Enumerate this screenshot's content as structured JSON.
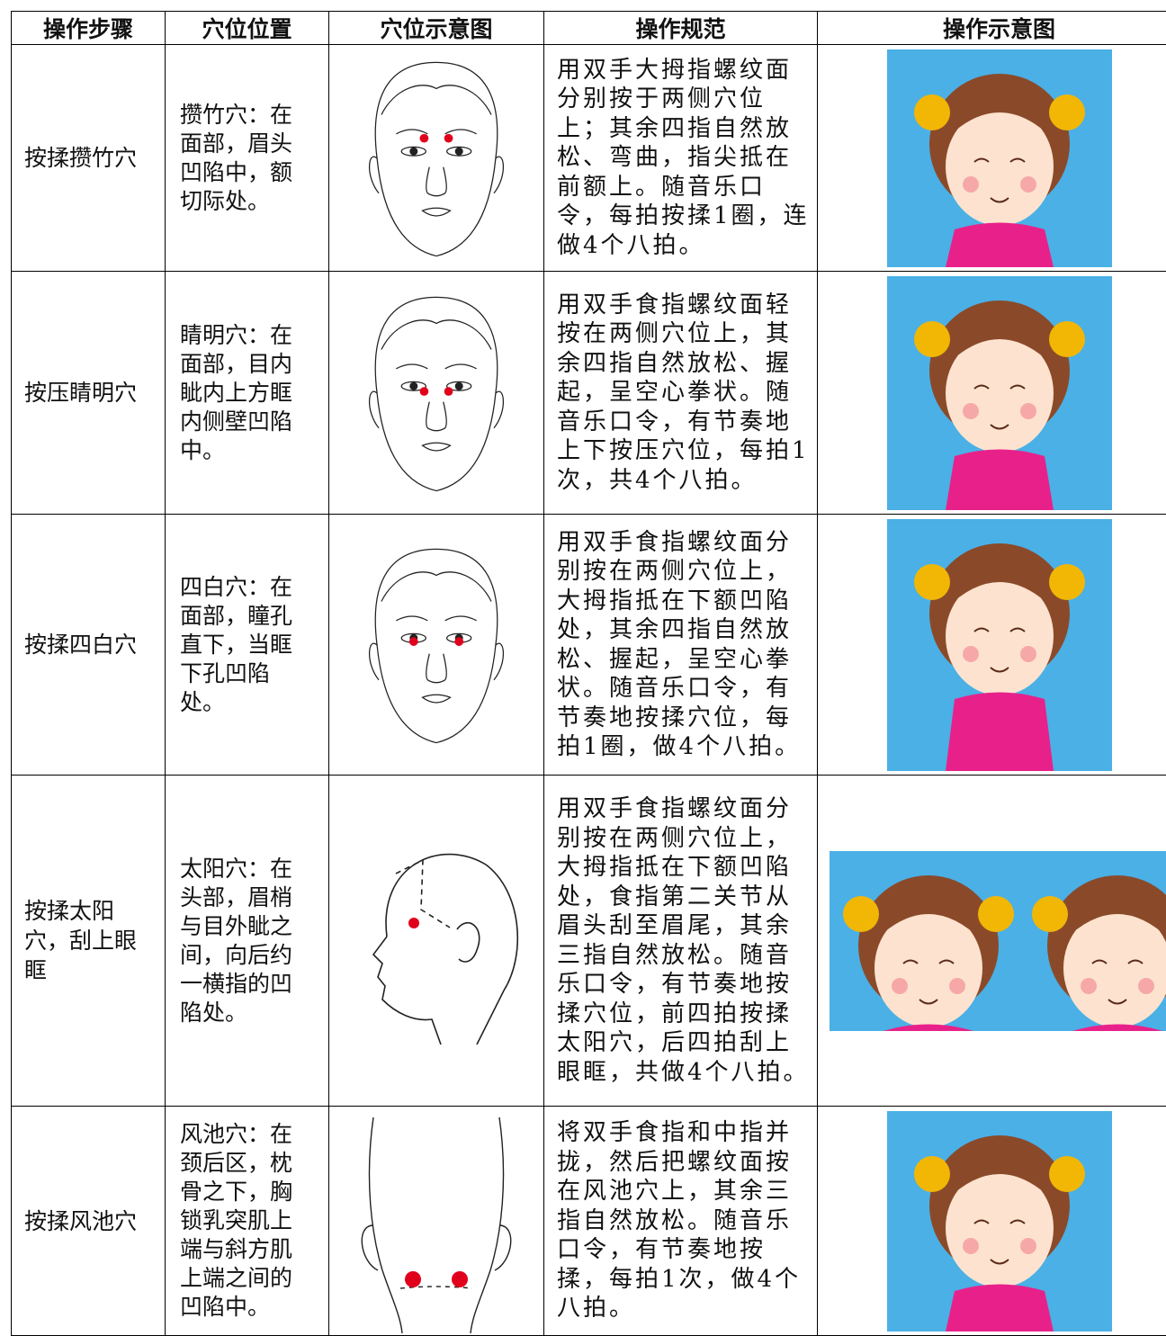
{
  "table": {
    "header": [
      "操作步骤",
      "穴位位置",
      "穴位示意图",
      "操作规范",
      "操作示意图"
    ],
    "rows": [
      [
        "按揉攒竹穴",
        "攒竹穴：在面部，眉头凹陷中，额切际处。",
        "用双手大拇指螺纹面分别按于两侧穴位上；其余四指自然放松、弯曲，指尖抵在前额上。随音乐口令，每拍按揉1圈，连做4个八拍。"
      ],
      [
        "按压睛明穴",
        "睛明穴：在面部，目内眦内上方眶内侧壁凹陷中。",
        "用双手食指螺纹面轻按在两侧穴位上，其余四指自然放松、握起，呈空心拳状。随音乐口令，有节奏地上下按压穴位，每拍1次，共4个八拍。"
      ],
      [
        "按揉四白穴",
        "四白穴：在面部，瞳孔直下，当眶下孔凹陷处。",
        "用双手食指螺纹面分别按在两侧穴位上，大拇指抵在下额凹陷处，其余四指自然放松、握起，呈空心拳状。随音乐口令，有节奏地按揉穴位，每拍1圈，做4个八拍。"
      ],
      [
        "按揉太阳穴，刮上眼眶",
        "太阳穴：在头部，眉梢与目外眦之间，向后约一横指的凹陷处。",
        "用双手食指螺纹面分别按在两侧穴位上，大拇指抵在下额凹陷处，食指第二关节从眉头刮至眉尾，其余三指自然放松。随音乐口令，有节奏地按揉穴位，前四拍按揉太阳穴，后四拍刮上眼眶，共做4个八拍。"
      ],
      [
        "按揉风池穴",
        "风池穴：在颈后区，枕骨之下，胸锁乳突肌上端与斜方肌上端之间的凹陷中。",
        "将双手食指和中指并拢，然后把螺纹面按在风池穴上，其余三指自然放松。随音乐口令，有节奏地按揉，每拍1次，做4个八拍。"
      ]
    ]
  }
}
